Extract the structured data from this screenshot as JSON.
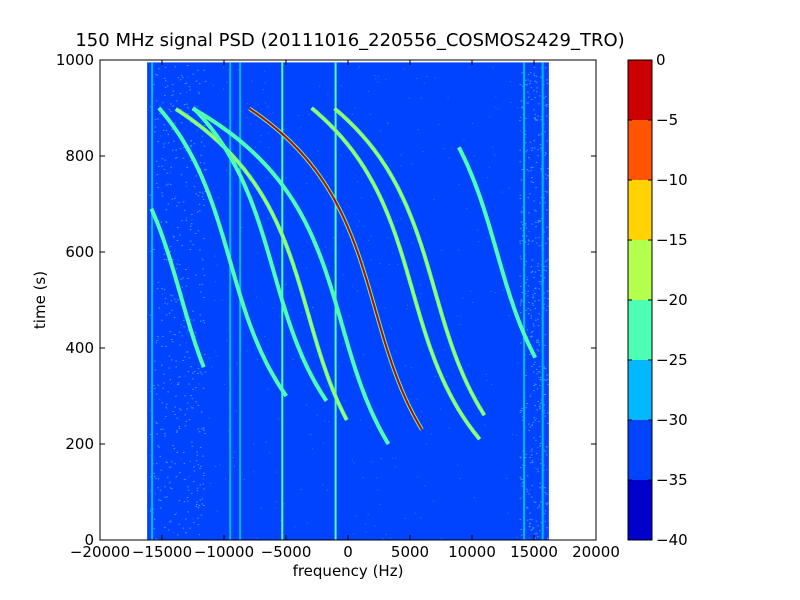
{
  "chart_data": {
    "type": "heatmap",
    "title": "150 MHz signal PSD (20111016_220556_COSMOS2429_TRO)",
    "xlabel": "frequency (Hz)",
    "ylabel": "time (s)",
    "xlim": [
      -20000,
      20000
    ],
    "ylim": [
      0,
      1000
    ],
    "xticks": [
      -20000,
      -15000,
      -10000,
      -5000,
      0,
      5000,
      10000,
      15000,
      20000
    ],
    "yticks": [
      0,
      200,
      400,
      600,
      800,
      1000
    ],
    "data_extent": {
      "freq": [
        -16200,
        16200
      ],
      "time": [
        0,
        995
      ]
    },
    "background_level": -33,
    "colorbar": {
      "levels": [
        -40,
        -35,
        -30,
        -25,
        -20,
        -15,
        -10,
        -5,
        0
      ],
      "colors": [
        "#0000cc",
        "#0044ff",
        "#00b8ff",
        "#4dffb2",
        "#b2ff4d",
        "#ffd200",
        "#ff5500",
        "#cc0000"
      ],
      "tick_labels": [
        "0",
        "−5",
        "−10",
        "−15",
        "−20",
        "−25",
        "−30",
        "−35",
        "−40"
      ]
    },
    "vertical_lines": [
      {
        "freq": -15800,
        "level": -27
      },
      {
        "freq": -9500,
        "level": -27
      },
      {
        "freq": -8700,
        "level": -27
      },
      {
        "freq": -5300,
        "level": -25
      },
      {
        "freq": -1000,
        "level": -25
      },
      {
        "freq": 14200,
        "level": -27
      },
      {
        "freq": 15700,
        "level": -27
      }
    ],
    "doppler_tracks": [
      {
        "center_time": 480,
        "center_freq": 2200,
        "amplitude": 2400,
        "t_start": 230,
        "t_end": 900,
        "peak_level": -5
      },
      {
        "center_time": 470,
        "center_freq": -3200,
        "amplitude": 2400,
        "t_start": 250,
        "t_end": 900,
        "peak_level": -20
      },
      {
        "center_time": 450,
        "center_freq": -500,
        "amplitude": 2400,
        "t_start": 200,
        "t_end": 900,
        "peak_level": -22
      },
      {
        "center_time": 520,
        "center_freq": 5200,
        "amplitude": 2400,
        "t_start": 210,
        "t_end": 900,
        "peak_level": -20
      },
      {
        "center_time": 520,
        "center_freq": 7000,
        "amplitude": 2400,
        "t_start": 260,
        "t_end": 900,
        "peak_level": -20
      },
      {
        "center_time": 560,
        "center_freq": -6000,
        "amplitude": 2400,
        "t_start": 290,
        "t_end": 900,
        "peak_level": -22
      },
      {
        "center_time": 580,
        "center_freq": -9500,
        "amplitude": 2400,
        "t_start": 300,
        "t_end": 900,
        "peak_level": -25
      },
      {
        "center_time": 600,
        "center_freq": 12000,
        "amplitude": 2400,
        "t_start": 380,
        "t_end": 820,
        "peak_level": -22
      },
      {
        "center_time": 510,
        "center_freq": -13500,
        "amplitude": 2400,
        "t_start": 360,
        "t_end": 690,
        "peak_level": -22
      }
    ]
  }
}
